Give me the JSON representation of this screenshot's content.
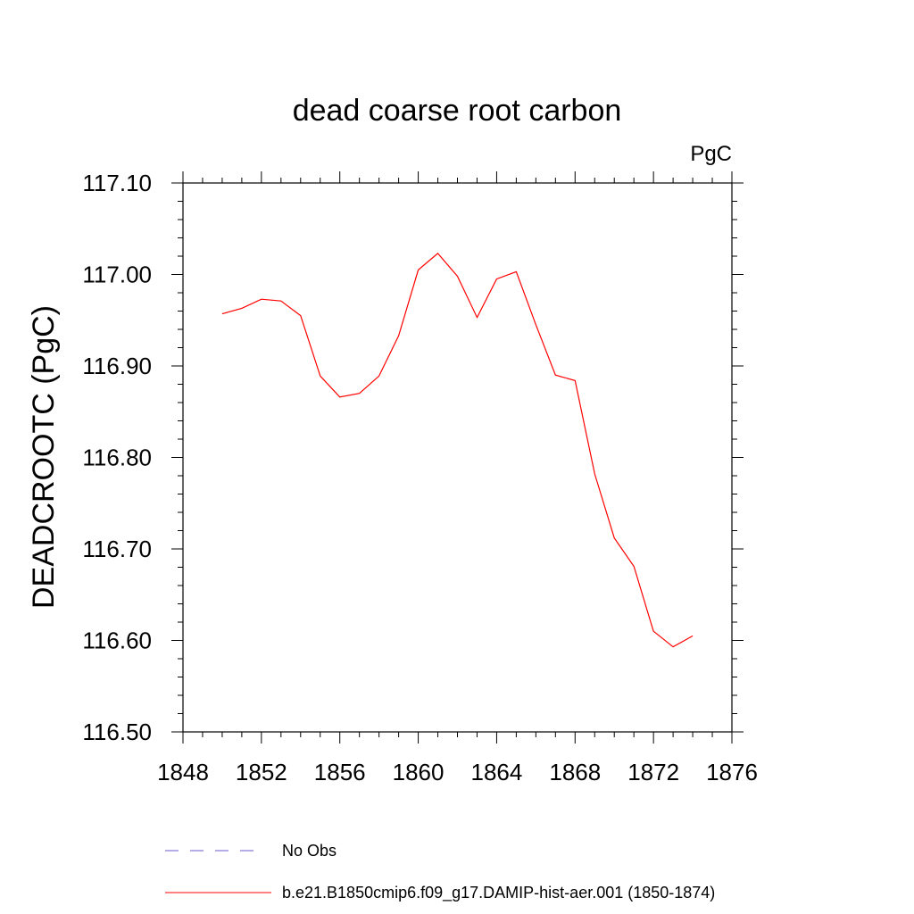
{
  "chart_data": {
    "type": "line",
    "title": "dead coarse root carbon",
    "units_label": "PgC",
    "xlabel": "",
    "ylabel": "DEADCROOTC  (PgC)",
    "xlim": [
      1848,
      1876
    ],
    "ylim": [
      116.5,
      117.1
    ],
    "x_ticks": [
      1848,
      1852,
      1856,
      1860,
      1864,
      1868,
      1872,
      1876
    ],
    "x_tick_labels": [
      "1848",
      "1852",
      "1856",
      "1860",
      "1864",
      "1868",
      "1872",
      "1876"
    ],
    "y_ticks": [
      116.5,
      116.6,
      116.7,
      116.8,
      116.9,
      117.0,
      117.1
    ],
    "y_tick_labels": [
      "116.50",
      "116.60",
      "116.70",
      "116.80",
      "116.90",
      "117.00",
      "117.10"
    ],
    "grid": false,
    "legend_position": "bottom",
    "series": [
      {
        "name": "No Obs",
        "color": "#6a5acd",
        "dash": "dashed",
        "x": [],
        "y": []
      },
      {
        "name": "b.e21.B1850cmip6.f09_g17.DAMIP-hist-aer.001 (1850-1874)",
        "color": "#ff0000",
        "dash": "solid",
        "x": [
          1850,
          1851,
          1852,
          1853,
          1854,
          1855,
          1856,
          1857,
          1858,
          1859,
          1860,
          1861,
          1862,
          1863,
          1864,
          1865,
          1866,
          1867,
          1868,
          1869,
          1870,
          1871,
          1872,
          1873,
          1874
        ],
        "y": [
          116.957,
          116.963,
          116.973,
          116.971,
          116.955,
          116.889,
          116.866,
          116.87,
          116.889,
          116.933,
          117.005,
          117.023,
          116.998,
          116.953,
          116.995,
          117.003,
          116.945,
          116.89,
          116.884,
          116.782,
          116.712,
          116.681,
          116.61,
          116.593,
          116.605
        ]
      }
    ]
  }
}
